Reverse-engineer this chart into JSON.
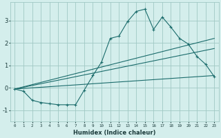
{
  "xlabel": "Humidex (Indice chaleur)",
  "bg_color": "#d4eeec",
  "grid_color": "#a0c8c4",
  "line_color": "#1a6b6b",
  "x_ticks": [
    0,
    1,
    2,
    3,
    4,
    5,
    6,
    7,
    8,
    9,
    10,
    11,
    12,
    13,
    14,
    15,
    16,
    17,
    18,
    19,
    20,
    21,
    22,
    23
  ],
  "xlim": [
    -0.5,
    23.5
  ],
  "ylim": [
    -1.5,
    3.8
  ],
  "line1_x": [
    0,
    1,
    2,
    3,
    4,
    5,
    6,
    7,
    8,
    9,
    10,
    11,
    12,
    13,
    14,
    15,
    16,
    17,
    18,
    19,
    20,
    21,
    22,
    23
  ],
  "line1_y": [
    -0.05,
    -0.15,
    -0.55,
    -0.65,
    -0.7,
    -0.75,
    -0.75,
    -0.75,
    -0.1,
    0.55,
    1.15,
    2.2,
    2.3,
    2.95,
    3.4,
    3.5,
    2.6,
    3.15,
    2.7,
    2.2,
    1.95,
    1.4,
    1.05,
    0.5
  ],
  "line2_x": [
    0,
    23
  ],
  "line2_y": [
    -0.05,
    2.2
  ],
  "line3_x": [
    0,
    23
  ],
  "line3_y": [
    -0.05,
    0.55
  ],
  "line4_x": [
    0,
    23
  ],
  "line4_y": [
    -0.05,
    1.75
  ],
  "yticks": [
    -1,
    0,
    1,
    2,
    3
  ]
}
